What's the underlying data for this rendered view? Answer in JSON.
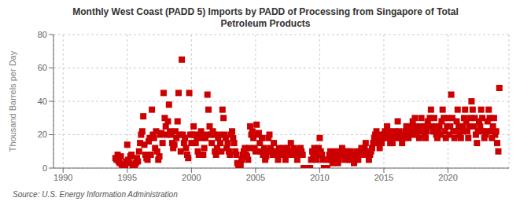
{
  "chart_data": {
    "type": "scatter",
    "title": "Monthly West Coast (PADD 5) Imports by PADD of Processing from Singapore of Total\nPetroleum Products",
    "ylabel": "Thousand Barrels per Day",
    "source": "Source: U.S. Energy Information Administration",
    "color": "#cc0000",
    "marker": "square",
    "grid": true,
    "xlim": [
      1989.25,
      2024.75
    ],
    "xticks": [
      1990,
      1995,
      2000,
      2005,
      2010,
      2015,
      2020
    ],
    "ylim": [
      0,
      80
    ],
    "yticks": [
      0,
      20,
      40,
      60,
      80
    ],
    "x": [
      1994.08,
      1994.17,
      1994.25,
      1994.33,
      1994.42,
      1994.5,
      1994.58,
      1994.67,
      1994.75,
      1994.83,
      1994.92,
      1995.0,
      1995.08,
      1995.17,
      1995.25,
      1995.33,
      1995.42,
      1995.5,
      1995.58,
      1995.67,
      1995.75,
      1995.83,
      1995.92,
      1996.0,
      1996.08,
      1996.17,
      1996.25,
      1996.33,
      1996.42,
      1996.5,
      1996.58,
      1996.67,
      1996.75,
      1996.83,
      1996.92,
      1997.0,
      1997.08,
      1997.17,
      1997.25,
      1997.33,
      1997.42,
      1997.5,
      1997.58,
      1997.67,
      1997.75,
      1997.83,
      1997.92,
      1998.0,
      1998.08,
      1998.17,
      1998.25,
      1998.33,
      1998.42,
      1998.5,
      1998.58,
      1998.67,
      1998.75,
      1998.83,
      1998.92,
      1999.0,
      1999.08,
      1999.17,
      1999.25,
      1999.33,
      1999.42,
      1999.5,
      1999.58,
      1999.67,
      1999.75,
      1999.83,
      1999.92,
      2000.0,
      2000.08,
      2000.17,
      2000.25,
      2000.33,
      2000.42,
      2000.5,
      2000.58,
      2000.67,
      2000.75,
      2000.83,
      2000.92,
      2001.0,
      2001.08,
      2001.17,
      2001.25,
      2001.33,
      2001.42,
      2001.5,
      2001.58,
      2001.67,
      2001.75,
      2001.83,
      2001.92,
      2002.0,
      2002.08,
      2002.17,
      2002.25,
      2002.33,
      2002.42,
      2002.5,
      2002.58,
      2002.67,
      2002.75,
      2002.83,
      2002.92,
      2003.0,
      2003.08,
      2003.17,
      2003.25,
      2003.33,
      2003.42,
      2003.5,
      2003.58,
      2003.67,
      2003.75,
      2003.83,
      2003.92,
      2004.0,
      2004.08,
      2004.17,
      2004.25,
      2004.33,
      2004.42,
      2004.5,
      2004.58,
      2004.67,
      2004.75,
      2004.83,
      2004.92,
      2005.0,
      2005.08,
      2005.17,
      2005.25,
      2005.33,
      2005.42,
      2005.5,
      2005.58,
      2005.67,
      2005.75,
      2005.83,
      2005.92,
      2006.0,
      2006.08,
      2006.17,
      2006.25,
      2006.33,
      2006.42,
      2006.5,
      2006.58,
      2006.67,
      2006.75,
      2006.83,
      2006.92,
      2007.0,
      2007.08,
      2007.17,
      2007.25,
      2007.33,
      2007.42,
      2007.5,
      2007.58,
      2007.67,
      2007.75,
      2007.83,
      2007.92,
      2008.0,
      2008.08,
      2008.17,
      2008.25,
      2008.33,
      2008.42,
      2008.5,
      2008.58,
      2008.67,
      2008.75,
      2008.83,
      2008.92,
      2009.0,
      2009.08,
      2009.17,
      2009.25,
      2009.33,
      2009.42,
      2009.5,
      2009.58,
      2009.67,
      2009.75,
      2009.83,
      2009.92,
      2010.0,
      2010.08,
      2010.17,
      2010.25,
      2010.33,
      2010.42,
      2010.5,
      2010.58,
      2010.67,
      2010.75,
      2010.83,
      2010.92,
      2011.0,
      2011.08,
      2011.17,
      2011.25,
      2011.33,
      2011.42,
      2011.5,
      2011.58,
      2011.67,
      2011.75,
      2011.83,
      2011.92,
      2012.0,
      2012.08,
      2012.17,
      2012.25,
      2012.33,
      2012.42,
      2012.5,
      2012.58,
      2012.67,
      2012.75,
      2012.83,
      2012.92,
      2013.0,
      2013.08,
      2013.17,
      2013.25,
      2013.33,
      2013.42,
      2013.5,
      2013.58,
      2013.67,
      2013.75,
      2013.83,
      2013.92,
      2014.0,
      2014.08,
      2014.17,
      2014.25,
      2014.33,
      2014.42,
      2014.5,
      2014.58,
      2014.67,
      2014.75,
      2014.83,
      2014.92,
      2015.0,
      2015.08,
      2015.17,
      2015.25,
      2015.33,
      2015.42,
      2015.5,
      2015.58,
      2015.67,
      2015.75,
      2015.83,
      2015.92,
      2016.0,
      2016.08,
      2016.17,
      2016.25,
      2016.33,
      2016.42,
      2016.5,
      2016.58,
      2016.67,
      2016.75,
      2016.83,
      2016.92,
      2017.0,
      2017.08,
      2017.17,
      2017.25,
      2017.33,
      2017.42,
      2017.5,
      2017.58,
      2017.67,
      2017.75,
      2017.83,
      2017.92,
      2018.0,
      2018.08,
      2018.17,
      2018.25,
      2018.33,
      2018.42,
      2018.5,
      2018.58,
      2018.67,
      2018.75,
      2018.83,
      2018.92,
      2019.0,
      2019.08,
      2019.17,
      2019.25,
      2019.33,
      2019.42,
      2019.5,
      2019.58,
      2019.67,
      2019.75,
      2019.83,
      2019.92,
      2020.0,
      2020.08,
      2020.17,
      2020.25,
      2020.33,
      2020.42,
      2020.5,
      2020.58,
      2020.67,
      2020.75,
      2020.83,
      2020.92,
      2021.0,
      2021.08,
      2021.17,
      2021.25,
      2021.33,
      2021.42,
      2021.5,
      2021.58,
      2021.67,
      2021.75,
      2021.83,
      2021.92,
      2022.0,
      2022.08,
      2022.17,
      2022.25,
      2022.33,
      2022.42,
      2022.5,
      2022.58,
      2022.67,
      2022.75,
      2022.83,
      2022.92,
      2023.0,
      2023.08,
      2023.17,
      2023.25,
      2023.33,
      2023.42,
      2023.5,
      2023.58,
      2023.67,
      2023.75,
      2023.83,
      2023.92,
      2024.0
    ],
    "values": [
      6,
      5,
      8,
      4,
      3,
      7,
      2,
      1,
      0,
      0,
      4,
      14,
      5,
      3,
      7,
      8,
      2,
      1,
      0,
      3,
      6,
      4,
      10,
      15,
      20,
      22,
      31,
      14,
      8,
      6,
      5,
      16,
      18,
      8,
      35,
      20,
      18,
      12,
      22,
      10,
      5,
      7,
      20,
      21,
      15,
      45,
      30,
      25,
      20,
      28,
      38,
      22,
      20,
      15,
      12,
      14,
      22,
      18,
      28,
      45,
      20,
      10,
      65,
      20,
      15,
      18,
      12,
      8,
      6,
      45,
      20,
      15,
      20,
      25,
      20,
      15,
      18,
      10,
      8,
      20,
      22,
      18,
      8,
      12,
      18,
      20,
      44,
      35,
      25,
      20,
      15,
      22,
      20,
      10,
      8,
      12,
      18,
      20,
      15,
      10,
      35,
      30,
      20,
      18,
      12,
      15,
      10,
      8,
      20,
      22,
      18,
      15,
      10,
      8,
      3,
      1,
      0,
      2,
      5,
      8,
      10,
      12,
      8,
      7,
      5,
      12,
      25,
      20,
      22,
      18,
      12,
      10,
      26,
      20,
      21,
      15,
      10,
      18,
      8,
      12,
      5,
      7,
      10,
      18,
      20,
      12,
      10,
      8,
      15,
      10,
      8,
      10,
      5,
      12,
      10,
      8,
      10,
      12,
      8,
      5,
      10,
      12,
      8,
      10,
      15,
      8,
      10,
      12,
      10,
      8,
      5,
      10,
      8,
      12,
      10,
      8,
      0,
      0,
      0,
      0,
      0,
      0,
      0,
      5,
      10,
      8,
      12,
      10,
      5,
      8,
      12,
      18,
      10,
      8,
      5,
      0,
      0,
      0,
      0,
      5,
      8,
      10,
      5,
      3,
      5,
      8,
      10,
      5,
      3,
      5,
      8,
      10,
      12,
      8,
      10,
      5,
      8,
      10,
      5,
      8,
      10,
      5,
      8,
      3,
      5,
      8,
      10,
      5,
      8,
      10,
      12,
      8,
      10,
      12,
      15,
      10,
      8,
      5,
      8,
      10,
      12,
      15,
      18,
      20,
      22,
      18,
      15,
      12,
      20,
      15,
      18,
      20,
      22,
      18,
      25,
      20,
      22,
      15,
      18,
      15,
      20,
      22,
      18,
      20,
      28,
      22,
      18,
      20,
      15,
      18,
      20,
      22,
      25,
      20,
      18,
      22,
      25,
      20,
      28,
      22,
      30,
      25,
      20,
      22,
      18,
      25,
      30,
      22,
      25,
      20,
      18,
      22,
      28,
      25,
      30,
      35,
      25,
      22,
      30,
      25,
      20,
      18,
      22,
      25,
      20,
      28,
      35,
      30,
      22,
      18,
      25,
      30,
      20,
      25,
      44,
      30,
      22,
      18,
      22,
      28,
      35,
      25,
      20,
      18,
      22,
      25,
      30,
      35,
      28,
      22,
      18,
      25,
      30,
      40,
      35,
      25,
      30,
      20,
      15,
      22,
      28,
      25,
      35,
      30,
      22,
      18,
      20,
      22,
      28,
      35,
      30,
      22,
      18,
      25,
      30,
      20,
      22,
      15,
      10,
      48
    ]
  }
}
